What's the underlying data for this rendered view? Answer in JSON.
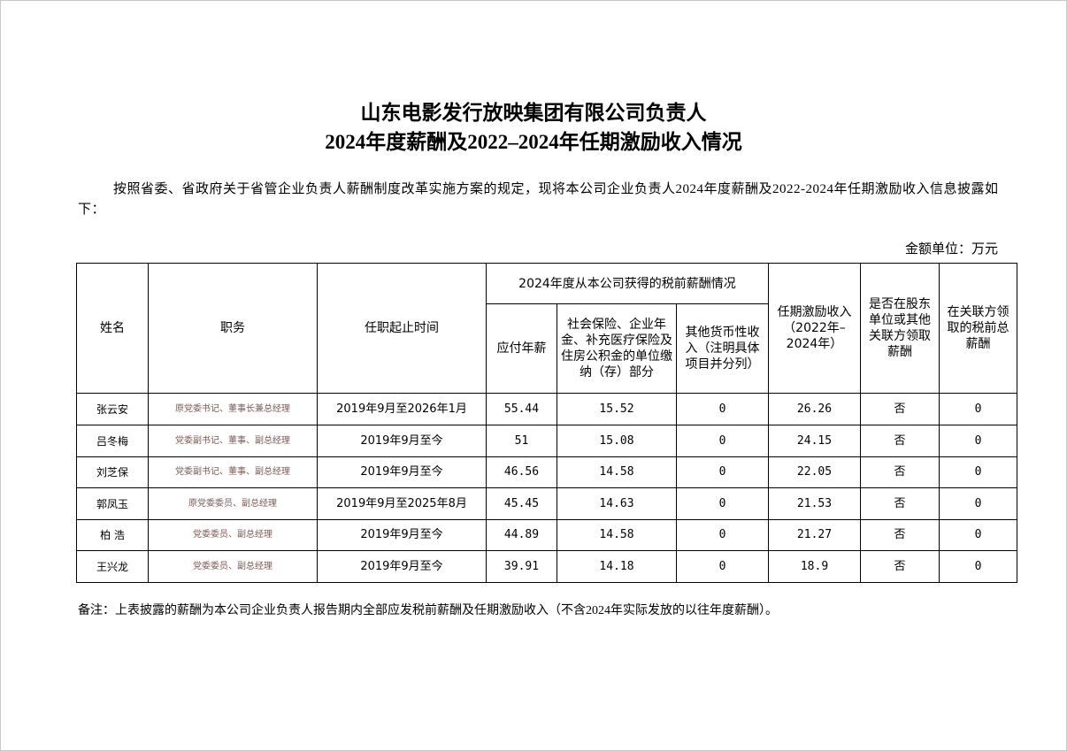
{
  "title": {
    "line1": "山东电影发行放映集团有限公司负责人",
    "line2": "2024年度薪酬及2022–2024年任期激励收入情况"
  },
  "intro": "按照省委、省政府关于省管企业负责人薪酬制度改革实施方案的规定，现将本公司企业负责人2024年度薪酬及2022-2024年任期激励收入信息披露如下：",
  "unit": "金额单位：万元",
  "table": {
    "headers": {
      "name": "姓名",
      "position": "职务",
      "term": "任职起止时间",
      "group": "2024年度从本公司获得的税前薪酬情况",
      "salary": "应付年薪",
      "insurance": "社会保险、企业年金、补充医疗保险及住房公积金的单位缴纳（存）部分",
      "other": "其他货币性收入（注明具体项目并分列）",
      "incentive": "任期激励收入（2022年–2024年）",
      "shareholder": "是否在股东单位或其他关联方领取薪酬",
      "related": "在关联方领取的税前总薪酬"
    },
    "rows": [
      {
        "name": "张云安",
        "position": "原党委书记、董事长兼总经理",
        "term": "2019年9月至2026年1月",
        "salary": "55.44",
        "insurance": "15.52",
        "other": "0",
        "incentive": "26.26",
        "shareholder": "否",
        "related": "0"
      },
      {
        "name": "吕冬梅",
        "position": "党委副书记、董事、副总经理",
        "term": "2019年9月至今",
        "salary": "51",
        "insurance": "15.08",
        "other": "0",
        "incentive": "24.15",
        "shareholder": "否",
        "related": "0"
      },
      {
        "name": "刘芝保",
        "position": "党委副书记、董事、副总经理",
        "term": "2019年9月至今",
        "salary": "46.56",
        "insurance": "14.58",
        "other": "0",
        "incentive": "22.05",
        "shareholder": "否",
        "related": "0"
      },
      {
        "name": "郭凤玉",
        "position": "原党委委员、副总经理",
        "term": "2019年9月至2025年8月",
        "salary": "45.45",
        "insurance": "14.63",
        "other": "0",
        "incentive": "21.53",
        "shareholder": "否",
        "related": "0"
      },
      {
        "name": "柏 浩",
        "position": "党委委员、副总经理",
        "term": "2019年9月至今",
        "salary": "44.89",
        "insurance": "14.58",
        "other": "0",
        "incentive": "21.27",
        "shareholder": "否",
        "related": "0"
      },
      {
        "name": "王兴龙",
        "position": "党委委员、副总经理",
        "term": "2019年9月至今",
        "salary": "39.91",
        "insurance": "14.18",
        "other": "0",
        "incentive": "18.9",
        "shareholder": "否",
        "related": "0"
      }
    ]
  },
  "note": "备注：上表披露的薪酬为本公司企业负责人报告期内全部应发税前薪酬及任期激励收入（不含2024年实际发放的以往年度薪酬）。"
}
